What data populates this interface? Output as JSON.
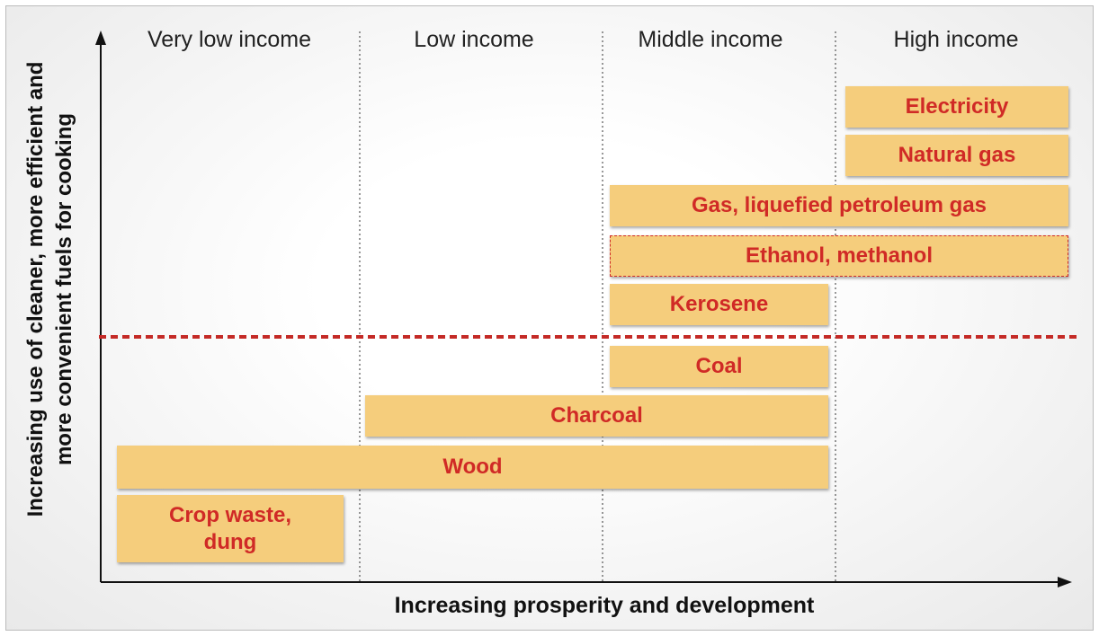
{
  "columns": [
    "Very low income",
    "Low income",
    "Middle income",
    "High income"
  ],
  "y_axis_label": [
    "Increasing use of cleaner, more efficient and",
    "more convenient fuels for cooking"
  ],
  "x_axis_label": "Increasing prosperity and development",
  "fuels": [
    {
      "label": [
        "Electricity"
      ]
    },
    {
      "label": [
        "Natural gas"
      ]
    },
    {
      "label": [
        "Gas, liquefied petroleum gas"
      ]
    },
    {
      "label": [
        "Ethanol, methanol"
      ]
    },
    {
      "label": [
        "Kerosene"
      ]
    },
    {
      "label": [
        "Coal"
      ]
    },
    {
      "label": [
        "Charcoal"
      ]
    },
    {
      "label": [
        "Wood"
      ]
    },
    {
      "label": [
        "Crop waste,",
        "dung"
      ]
    }
  ]
}
